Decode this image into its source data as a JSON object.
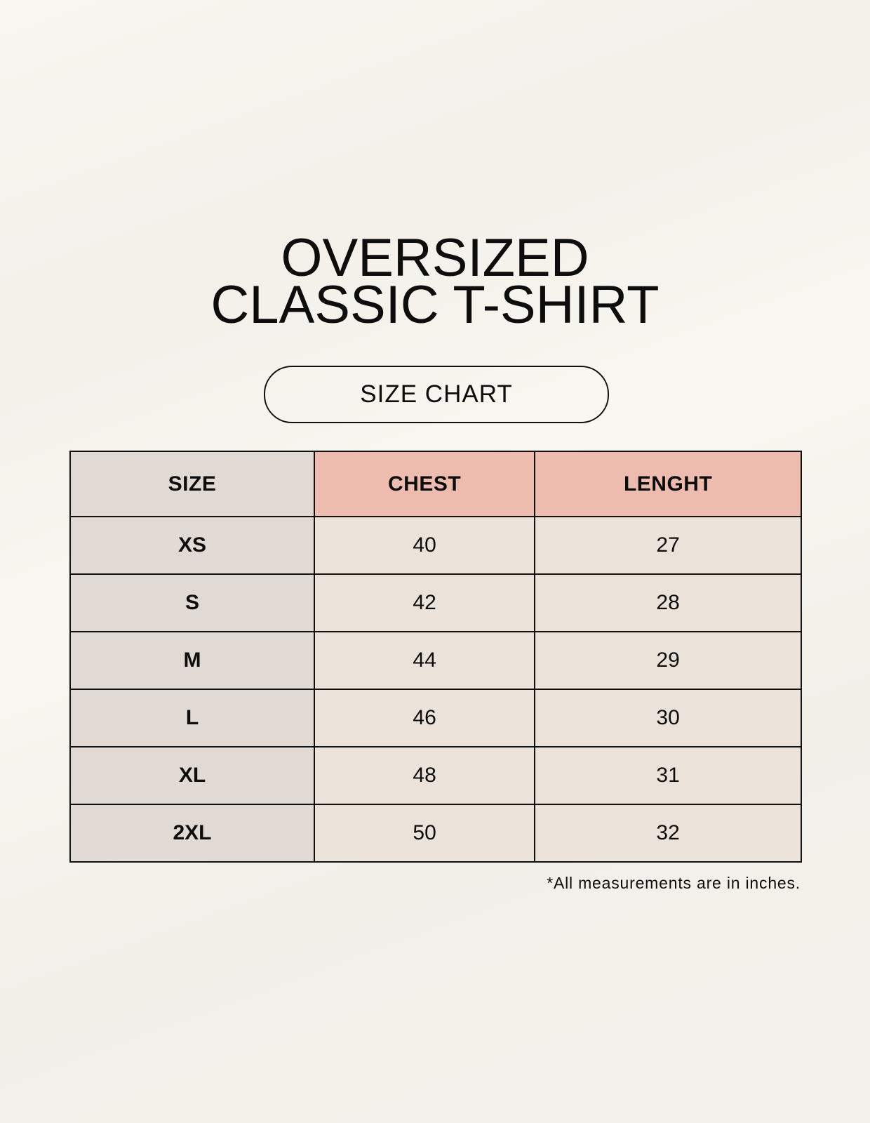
{
  "title": {
    "line1": "OVERSIZED",
    "line2": "CLASSIC T-SHIRT"
  },
  "badge": "SIZE CHART",
  "table": {
    "headers": [
      "SIZE",
      "CHEST",
      "LENGHT"
    ],
    "rows": [
      {
        "size": "XS",
        "chest": "40",
        "length": "27"
      },
      {
        "size": "S",
        "chest": "42",
        "length": "28"
      },
      {
        "size": "M",
        "chest": "44",
        "length": "29"
      },
      {
        "size": "L",
        "chest": "46",
        "length": "30"
      },
      {
        "size": "XL",
        "chest": "48",
        "length": "31"
      },
      {
        "size": "2XL",
        "chest": "50",
        "length": "32"
      }
    ]
  },
  "footnote": "*All measurements are in inches.",
  "colors": {
    "size_column": "#e1d9d4",
    "header_accent": "#edbcaf",
    "value_cells": "#ebe3da"
  }
}
